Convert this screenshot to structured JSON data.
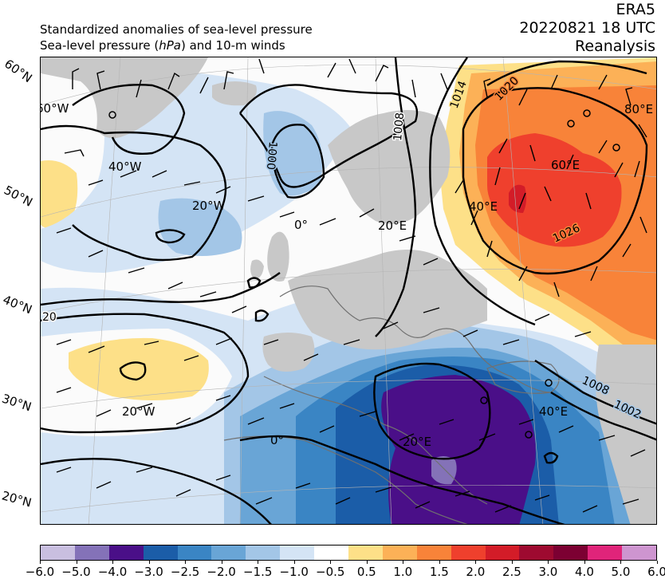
{
  "header": {
    "line1": "Standardized anomalies of sea-level pressure",
    "line2_pre": "Sea-level pressure (",
    "line2_unit": "hPa",
    "line2_post": ") and 10-m winds",
    "dataset": "ERA5",
    "datetime": "20220821 18 UTC",
    "product": "Reanalysis"
  },
  "map": {
    "lat_labels": [
      "60°N",
      "50°N",
      "40°N",
      "30°N",
      "20°N"
    ],
    "lon_labels_inner": [
      "60°W",
      "40°W",
      "20°W",
      "0°",
      "20°E",
      "40°E",
      "60°E",
      "80°E",
      "20°W",
      "0°",
      "20°E",
      "40°E"
    ],
    "isobar_labels": [
      "1000",
      "1008",
      "1014",
      "1020",
      "1026",
      "1008",
      "1002",
      "20"
    ],
    "colors": {
      "land": "#c8c8c8",
      "sea": "#fbfbfb",
      "isobar": "#000000",
      "coast": "#707070"
    }
  },
  "colorbar": {
    "ticks": [
      "−6.0",
      "−5.0",
      "−4.0",
      "−3.0",
      "−2.5",
      "−2.0",
      "−1.5",
      "−1.0",
      "−0.5",
      "0.5",
      "1.0",
      "1.5",
      "2.0",
      "2.5",
      "3.0",
      "4.0",
      "5.0",
      "6.0"
    ],
    "colors": [
      "#c9bfe0",
      "#8472b8",
      "#4a0f88",
      "#1b5da8",
      "#3a85c4",
      "#69a5d6",
      "#a3c6e7",
      "#d4e4f5",
      "#ffffff",
      "#fde088",
      "#fcb157",
      "#f88339",
      "#ef402d",
      "#d31c28",
      "#9e0a30",
      "#7c0032",
      "#e0247a",
      "#ce95d0"
    ]
  }
}
